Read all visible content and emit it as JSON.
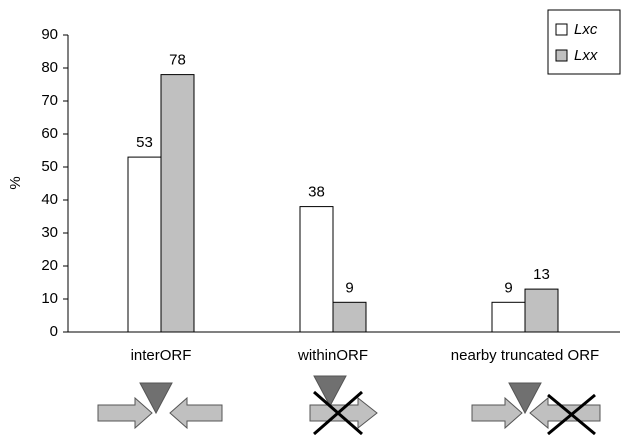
{
  "chart_data": {
    "type": "bar",
    "y_label": "%",
    "categories": [
      "interORF",
      "withinORF",
      "nearby truncated ORF"
    ],
    "series": [
      {
        "name": "Lxc",
        "color": "#ffffff",
        "values": [
          53,
          38,
          9
        ]
      },
      {
        "name": "Lxx",
        "color": "#c0c0c0",
        "values": [
          78,
          9,
          13
        ]
      }
    ],
    "ylim": [
      0,
      90
    ],
    "yticks": [
      0,
      10,
      20,
      30,
      40,
      50,
      60,
      70,
      80,
      90
    ],
    "legend": "top-right"
  }
}
